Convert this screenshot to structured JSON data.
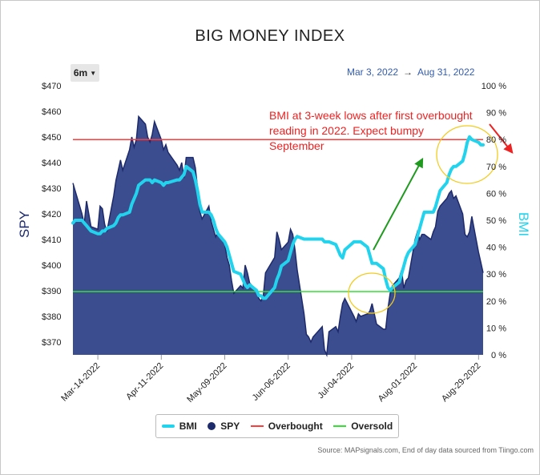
{
  "title": "BIG MONEY INDEX",
  "range_button": "6m",
  "date_range": {
    "from": "Mar 3, 2022",
    "arrow": "→",
    "to": "Aug 31, 2022"
  },
  "source": "Source: MAPsignals.com, End of day data sourced from Tiingo.com",
  "colors": {
    "spy_fill": "#3b4d8f",
    "spy_line": "#1d2a6b",
    "bmi": "#22d3ee",
    "overbought": "#ff3b3b",
    "oversold": "#33e033",
    "annotation": "#ee2222",
    "arrow_green": "#1f9a1f",
    "circle": "#f2cc20"
  },
  "annotation": {
    "lines": [
      "BMI at 3-week lows after first overbought",
      "reading in 2022. Expect bumpy",
      "September"
    ]
  },
  "legend": [
    {
      "key": "bmi",
      "label": "BMI"
    },
    {
      "key": "spy",
      "label": "SPY"
    },
    {
      "key": "overbought",
      "label": "Overbought"
    },
    {
      "key": "oversold",
      "label": "Oversold"
    }
  ],
  "chart_data": {
    "type": "area",
    "title": "BIG MONEY INDEX",
    "xlabel": "",
    "ylabel_left": "SPY",
    "ylabel_right": "BMI",
    "x_ticks": [
      "Mar-14-2022",
      "Apr-11-2022",
      "May-09-2022",
      "Jun-06-2022",
      "Jul-04-2022",
      "Aug-01-2022",
      "Aug-29-2022"
    ],
    "y_left": {
      "min": 365,
      "max": 470,
      "ticks": [
        370,
        380,
        390,
        400,
        410,
        420,
        430,
        440,
        450,
        460,
        470
      ],
      "prefix": "$"
    },
    "y_right": {
      "min": 0,
      "max": 100,
      "ticks": [
        0,
        10,
        20,
        30,
        40,
        50,
        60,
        70,
        80,
        90,
        100
      ],
      "suffix": " %"
    },
    "x_range": [
      "2022-03-03",
      "2022-08-31"
    ],
    "overbought_level": 80,
    "oversold_level": 23.5,
    "series": [
      {
        "key": "spy",
        "name": "SPY",
        "axis": "left",
        "points": [
          [
            "2022-03-03",
            432
          ],
          [
            "2022-03-04",
            429
          ],
          [
            "2022-03-07",
            420
          ],
          [
            "2022-03-08",
            416
          ],
          [
            "2022-03-09",
            425
          ],
          [
            "2022-03-10",
            420
          ],
          [
            "2022-03-11",
            415
          ],
          [
            "2022-03-14",
            414
          ],
          [
            "2022-03-15",
            423
          ],
          [
            "2022-03-16",
            422
          ],
          [
            "2022-03-17",
            416
          ],
          [
            "2022-03-18",
            413
          ],
          [
            "2022-03-21",
            427
          ],
          [
            "2022-03-22",
            433
          ],
          [
            "2022-03-23",
            437
          ],
          [
            "2022-03-24",
            441
          ],
          [
            "2022-03-25",
            437
          ],
          [
            "2022-03-28",
            445
          ],
          [
            "2022-03-29",
            450
          ],
          [
            "2022-03-30",
            446
          ],
          [
            "2022-03-31",
            449
          ],
          [
            "2022-04-01",
            458
          ],
          [
            "2022-04-04",
            455
          ],
          [
            "2022-04-05",
            450
          ],
          [
            "2022-04-06",
            448
          ],
          [
            "2022-04-07",
            451
          ],
          [
            "2022-04-08",
            456
          ],
          [
            "2022-04-11",
            449
          ],
          [
            "2022-04-12",
            445
          ],
          [
            "2022-04-13",
            447
          ],
          [
            "2022-04-14",
            444
          ],
          [
            "2022-04-18",
            439
          ],
          [
            "2022-04-19",
            437
          ],
          [
            "2022-04-20",
            440
          ],
          [
            "2022-04-21",
            434
          ],
          [
            "2022-04-22",
            442
          ],
          [
            "2022-04-25",
            442
          ],
          [
            "2022-04-26",
            438
          ],
          [
            "2022-04-27",
            430
          ],
          [
            "2022-04-28",
            421
          ],
          [
            "2022-04-29",
            418
          ],
          [
            "2022-05-02",
            423
          ],
          [
            "2022-05-03",
            417
          ],
          [
            "2022-05-04",
            414
          ],
          [
            "2022-05-05",
            411
          ],
          [
            "2022-05-06",
            413
          ],
          [
            "2022-05-09",
            408
          ],
          [
            "2022-05-10",
            403
          ],
          [
            "2022-05-11",
            400
          ],
          [
            "2022-05-12",
            394
          ],
          [
            "2022-05-13",
            389
          ],
          [
            "2022-05-16",
            392
          ],
          [
            "2022-05-17",
            391
          ],
          [
            "2022-05-18",
            400
          ],
          [
            "2022-05-19",
            397
          ],
          [
            "2022-05-20",
            393
          ],
          [
            "2022-05-23",
            390
          ],
          [
            "2022-05-24",
            387
          ],
          [
            "2022-05-25",
            386
          ],
          [
            "2022-05-26",
            388
          ],
          [
            "2022-05-27",
            397
          ],
          [
            "2022-05-31",
            403
          ],
          [
            "2022-06-01",
            413
          ],
          [
            "2022-06-02",
            410
          ],
          [
            "2022-06-03",
            406
          ],
          [
            "2022-06-06",
            409
          ],
          [
            "2022-06-07",
            414
          ],
          [
            "2022-06-08",
            412
          ],
          [
            "2022-06-09",
            406
          ],
          [
            "2022-06-10",
            398
          ],
          [
            "2022-06-13",
            381
          ],
          [
            "2022-06-14",
            373
          ],
          [
            "2022-06-15",
            372
          ],
          [
            "2022-06-16",
            370
          ],
          [
            "2022-06-17",
            372
          ],
          [
            "2022-06-21",
            376
          ],
          [
            "2022-06-22",
            367
          ],
          [
            "2022-06-23",
            365
          ],
          [
            "2022-06-24",
            374
          ],
          [
            "2022-06-27",
            376
          ],
          [
            "2022-06-28",
            374
          ],
          [
            "2022-06-29",
            380
          ],
          [
            "2022-06-30",
            385
          ],
          [
            "2022-07-01",
            387
          ],
          [
            "2022-07-05",
            380
          ],
          [
            "2022-07-06",
            378
          ],
          [
            "2022-07-07",
            381
          ],
          [
            "2022-07-08",
            380
          ],
          [
            "2022-07-11",
            381
          ],
          [
            "2022-07-12",
            382
          ],
          [
            "2022-07-13",
            385
          ],
          [
            "2022-07-14",
            381
          ],
          [
            "2022-07-15",
            377
          ],
          [
            "2022-07-18",
            375
          ],
          [
            "2022-07-19",
            375
          ],
          [
            "2022-07-20",
            383
          ],
          [
            "2022-07-21",
            389
          ],
          [
            "2022-07-22",
            392
          ],
          [
            "2022-07-25",
            395
          ],
          [
            "2022-07-26",
            398
          ],
          [
            "2022-07-27",
            391
          ],
          [
            "2022-07-28",
            394
          ],
          [
            "2022-07-29",
            395
          ],
          [
            "2022-08-01",
            410
          ],
          [
            "2022-08-02",
            413
          ],
          [
            "2022-08-03",
            410
          ],
          [
            "2022-08-04",
            412
          ],
          [
            "2022-08-05",
            412
          ],
          [
            "2022-08-08",
            410
          ],
          [
            "2022-08-09",
            413
          ],
          [
            "2022-08-10",
            415
          ],
          [
            "2022-08-11",
            421
          ],
          [
            "2022-08-12",
            423
          ],
          [
            "2022-08-15",
            426
          ],
          [
            "2022-08-16",
            428
          ],
          [
            "2022-08-17",
            429
          ],
          [
            "2022-08-18",
            426
          ],
          [
            "2022-08-19",
            427
          ],
          [
            "2022-08-22",
            420
          ],
          [
            "2022-08-23",
            412
          ],
          [
            "2022-08-24",
            411
          ],
          [
            "2022-08-25",
            413
          ],
          [
            "2022-08-26",
            419
          ],
          [
            "2022-08-29",
            405
          ],
          [
            "2022-08-30",
            401
          ],
          [
            "2022-08-31",
            397
          ]
        ]
      },
      {
        "key": "bmi",
        "name": "BMI",
        "axis": "right",
        "points": [
          [
            "2022-03-03",
            49
          ],
          [
            "2022-03-04",
            50
          ],
          [
            "2022-03-07",
            50
          ],
          [
            "2022-03-08",
            49
          ],
          [
            "2022-03-09",
            48
          ],
          [
            "2022-03-10",
            47
          ],
          [
            "2022-03-11",
            46
          ],
          [
            "2022-03-14",
            45
          ],
          [
            "2022-03-15",
            45
          ],
          [
            "2022-03-16",
            46
          ],
          [
            "2022-03-17",
            46
          ],
          [
            "2022-03-18",
            47
          ],
          [
            "2022-03-21",
            48
          ],
          [
            "2022-03-22",
            49
          ],
          [
            "2022-03-23",
            51
          ],
          [
            "2022-03-24",
            52
          ],
          [
            "2022-03-25",
            52
          ],
          [
            "2022-03-28",
            53
          ],
          [
            "2022-03-29",
            56
          ],
          [
            "2022-03-30",
            58
          ],
          [
            "2022-03-31",
            60
          ],
          [
            "2022-04-01",
            63
          ],
          [
            "2022-04-04",
            65
          ],
          [
            "2022-04-05",
            65
          ],
          [
            "2022-04-06",
            65
          ],
          [
            "2022-04-07",
            64
          ],
          [
            "2022-04-08",
            65
          ],
          [
            "2022-04-11",
            64
          ],
          [
            "2022-04-12",
            63
          ],
          [
            "2022-04-13",
            64
          ],
          [
            "2022-04-14",
            64
          ],
          [
            "2022-04-18",
            65
          ],
          [
            "2022-04-19",
            65
          ],
          [
            "2022-04-20",
            66
          ],
          [
            "2022-04-21",
            67
          ],
          [
            "2022-04-22",
            70
          ],
          [
            "2022-04-25",
            68
          ],
          [
            "2022-04-26",
            65
          ],
          [
            "2022-04-27",
            61
          ],
          [
            "2022-04-28",
            56
          ],
          [
            "2022-04-29",
            53
          ],
          [
            "2022-05-02",
            53
          ],
          [
            "2022-05-03",
            52
          ],
          [
            "2022-05-04",
            50
          ],
          [
            "2022-05-05",
            47
          ],
          [
            "2022-05-06",
            45
          ],
          [
            "2022-05-09",
            42
          ],
          [
            "2022-05-10",
            40
          ],
          [
            "2022-05-11",
            37
          ],
          [
            "2022-05-12",
            34
          ],
          [
            "2022-05-13",
            31
          ],
          [
            "2022-05-16",
            30
          ],
          [
            "2022-05-17",
            28
          ],
          [
            "2022-05-18",
            26
          ],
          [
            "2022-05-19",
            25
          ],
          [
            "2022-05-20",
            26
          ],
          [
            "2022-05-23",
            24
          ],
          [
            "2022-05-24",
            22
          ],
          [
            "2022-05-25",
            22
          ],
          [
            "2022-05-26",
            21
          ],
          [
            "2022-05-27",
            21
          ],
          [
            "2022-05-31",
            25
          ],
          [
            "2022-06-01",
            28
          ],
          [
            "2022-06-02",
            30
          ],
          [
            "2022-06-03",
            33
          ],
          [
            "2022-06-06",
            35
          ],
          [
            "2022-06-07",
            38
          ],
          [
            "2022-06-08",
            41
          ],
          [
            "2022-06-09",
            43
          ],
          [
            "2022-06-10",
            44
          ],
          [
            "2022-06-13",
            43
          ],
          [
            "2022-06-14",
            43
          ],
          [
            "2022-06-15",
            43
          ],
          [
            "2022-06-16",
            43
          ],
          [
            "2022-06-17",
            43
          ],
          [
            "2022-06-21",
            43
          ],
          [
            "2022-06-22",
            42
          ],
          [
            "2022-06-23",
            42
          ],
          [
            "2022-06-24",
            42
          ],
          [
            "2022-06-27",
            41
          ],
          [
            "2022-06-28",
            39
          ],
          [
            "2022-06-29",
            37
          ],
          [
            "2022-06-30",
            36
          ],
          [
            "2022-07-01",
            39
          ],
          [
            "2022-07-05",
            42
          ],
          [
            "2022-07-06",
            42
          ],
          [
            "2022-07-07",
            42
          ],
          [
            "2022-07-08",
            42
          ],
          [
            "2022-07-11",
            40
          ],
          [
            "2022-07-12",
            37
          ],
          [
            "2022-07-13",
            34
          ],
          [
            "2022-07-14",
            34
          ],
          [
            "2022-07-15",
            34
          ],
          [
            "2022-07-18",
            32
          ],
          [
            "2022-07-19",
            28
          ],
          [
            "2022-07-20",
            25
          ],
          [
            "2022-07-21",
            24
          ],
          [
            "2022-07-22",
            25
          ],
          [
            "2022-07-25",
            27
          ],
          [
            "2022-07-26",
            30
          ],
          [
            "2022-07-27",
            33
          ],
          [
            "2022-07-28",
            36
          ],
          [
            "2022-07-29",
            38
          ],
          [
            "2022-08-01",
            41
          ],
          [
            "2022-08-02",
            44
          ],
          [
            "2022-08-03",
            47
          ],
          [
            "2022-08-04",
            50
          ],
          [
            "2022-08-05",
            53
          ],
          [
            "2022-08-08",
            53
          ],
          [
            "2022-08-09",
            53
          ],
          [
            "2022-08-10",
            55
          ],
          [
            "2022-08-11",
            58
          ],
          [
            "2022-08-12",
            61
          ],
          [
            "2022-08-15",
            64
          ],
          [
            "2022-08-16",
            67
          ],
          [
            "2022-08-17",
            69
          ],
          [
            "2022-08-18",
            70
          ],
          [
            "2022-08-19",
            70
          ],
          [
            "2022-08-22",
            72
          ],
          [
            "2022-08-23",
            75
          ],
          [
            "2022-08-24",
            79
          ],
          [
            "2022-08-25",
            81
          ],
          [
            "2022-08-26",
            80
          ],
          [
            "2022-08-29",
            79
          ],
          [
            "2022-08-30",
            78
          ],
          [
            "2022-08-31",
            78
          ]
        ]
      }
    ]
  }
}
